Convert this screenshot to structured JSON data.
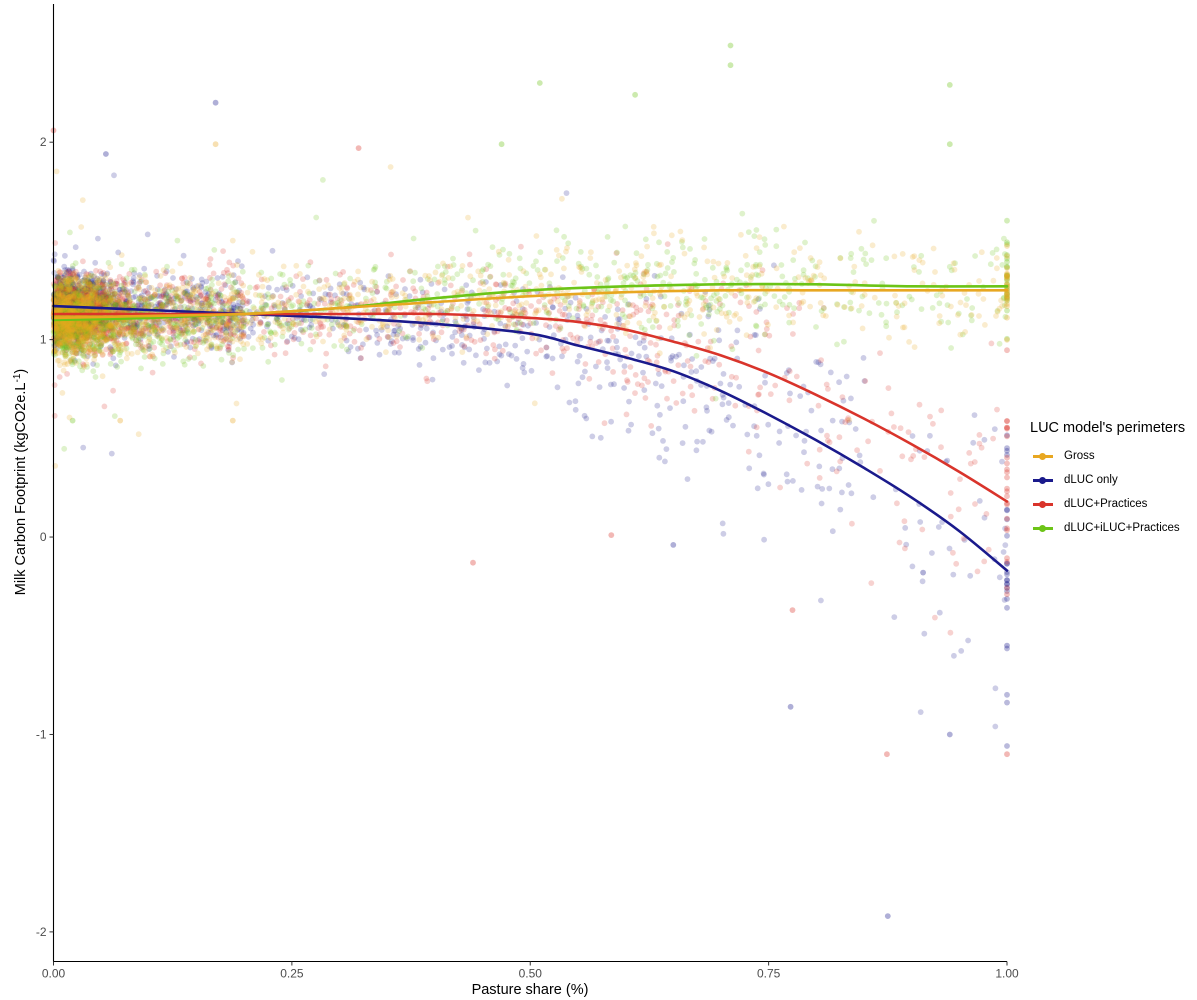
{
  "chart_data": {
    "type": "scatter",
    "xlabel": "Pasture share (%)",
    "ylabel_main": "Milk Carbon Footprint (kgCO2e.L",
    "ylabel_sup": "-1",
    "ylabel_close": ")",
    "xlim": [
      0,
      1
    ],
    "ylim": [
      -2.15,
      2.7
    ],
    "x_ticks": [
      0,
      0.25,
      0.5,
      0.75,
      1
    ],
    "x_tick_labels": [
      "0.00",
      "0.25",
      "0.50",
      "0.75",
      "1.00"
    ],
    "y_ticks": [
      -2,
      -1,
      0,
      1,
      2
    ],
    "y_tick_labels": [
      "-2",
      "-1",
      "0",
      "1",
      "2"
    ],
    "grid": false,
    "legend": {
      "title": "LUC model's perimeters",
      "position": "right",
      "entries": [
        "Gross",
        "dLUC only",
        "dLUC+Practices",
        "dLUC+iLUC+Practices"
      ]
    },
    "series": [
      {
        "name": "Gross",
        "color": "#E8A721",
        "smooth_x": [
          0,
          0.1,
          0.2,
          0.3,
          0.4,
          0.5,
          0.6,
          0.7,
          0.8,
          0.9,
          1.0
        ],
        "smooth_y": [
          1.11,
          1.12,
          1.13,
          1.16,
          1.19,
          1.22,
          1.24,
          1.25,
          1.25,
          1.25,
          1.25
        ],
        "outlier_points": [
          [
            0.07,
            0.59
          ],
          [
            0.188,
            0.59
          ],
          [
            0.17,
            1.99
          ]
        ]
      },
      {
        "name": "dLUC only",
        "color": "#1A1A8C",
        "smooth_x": [
          0,
          0.1,
          0.2,
          0.3,
          0.4,
          0.5,
          0.55,
          0.6,
          0.65,
          0.7,
          0.75,
          0.8,
          0.85,
          0.9,
          0.95,
          1.0
        ],
        "smooth_y": [
          1.17,
          1.15,
          1.13,
          1.11,
          1.08,
          1.03,
          0.97,
          0.91,
          0.84,
          0.74,
          0.62,
          0.49,
          0.35,
          0.2,
          0.03,
          -0.17
        ],
        "outlier_points": [
          [
            0.875,
            -1.92
          ],
          [
            0.94,
            -1.0
          ],
          [
            0.773,
            -0.86
          ],
          [
            1.0,
            -0.55
          ],
          [
            0.65,
            -0.04
          ],
          [
            0.17,
            2.2
          ],
          [
            0.055,
            1.94
          ],
          [
            0.912,
            -0.18
          ]
        ]
      },
      {
        "name": "dLUC+Practices",
        "color": "#D9342B",
        "smooth_x": [
          0,
          0.1,
          0.2,
          0.3,
          0.4,
          0.5,
          0.55,
          0.6,
          0.65,
          0.7,
          0.75,
          0.8,
          0.85,
          0.9,
          0.95,
          1.0
        ],
        "smooth_y": [
          1.13,
          1.13,
          1.13,
          1.13,
          1.13,
          1.11,
          1.09,
          1.05,
          0.99,
          0.92,
          0.83,
          0.72,
          0.6,
          0.47,
          0.33,
          0.18
        ],
        "outlier_points": [
          [
            0.874,
            -1.1
          ],
          [
            1.0,
            -1.1
          ],
          [
            0.775,
            -0.37
          ],
          [
            0.44,
            -0.13
          ],
          [
            0.585,
            0.01
          ],
          [
            0.32,
            1.97
          ],
          [
            0.0,
            2.06
          ]
        ]
      },
      {
        "name": "dLUC+iLUC+Practices",
        "color": "#6CC417",
        "smooth_x": [
          0,
          0.1,
          0.2,
          0.3,
          0.4,
          0.5,
          0.6,
          0.7,
          0.8,
          0.9,
          1.0
        ],
        "smooth_y": [
          1.1,
          1.11,
          1.13,
          1.16,
          1.21,
          1.25,
          1.27,
          1.28,
          1.28,
          1.27,
          1.27
        ],
        "outlier_points": [
          [
            0.71,
            2.49
          ],
          [
            0.71,
            2.39
          ],
          [
            0.94,
            2.29
          ],
          [
            0.51,
            2.3
          ],
          [
            0.61,
            2.24
          ],
          [
            0.94,
            1.99
          ],
          [
            0.47,
            1.99
          ],
          [
            0.02,
            0.59
          ]
        ]
      }
    ]
  }
}
